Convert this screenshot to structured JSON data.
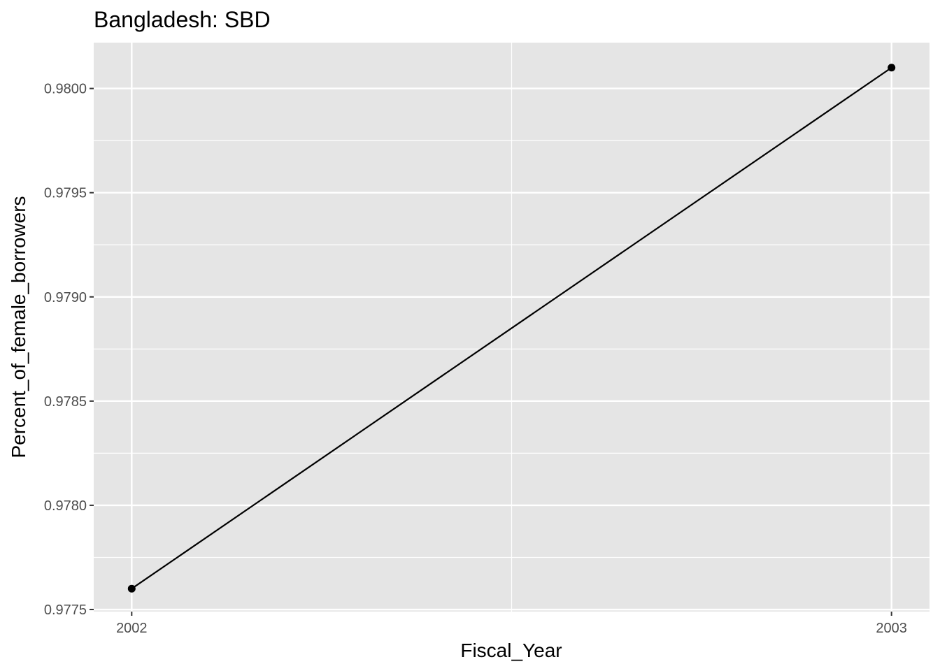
{
  "chart_data": {
    "type": "line",
    "title": "Bangladesh:  SBD",
    "xlabel": "Fiscal_Year",
    "ylabel": "Percent_of_female_borrowers",
    "x": [
      2002,
      2003
    ],
    "y": [
      0.9776,
      0.9801
    ],
    "xlim": [
      2001.95,
      2003.05
    ],
    "ylim": [
      0.97749,
      0.98022
    ],
    "x_ticks": [
      "2002",
      "2003"
    ],
    "x_tick_values": [
      2002,
      2003
    ],
    "y_ticks": [
      "0.9775",
      "0.9780",
      "0.9785",
      "0.9790",
      "0.9795",
      "0.9800"
    ],
    "y_tick_values": [
      0.9775,
      0.978,
      0.9785,
      0.979,
      0.9795,
      0.98
    ],
    "grid": true,
    "colors": {
      "panel": "#e5e5e5",
      "grid": "#ffffff",
      "line": "#000000",
      "point": "#000000",
      "tick_text": "#4d4d4d",
      "tick_mark": "#333333"
    }
  }
}
